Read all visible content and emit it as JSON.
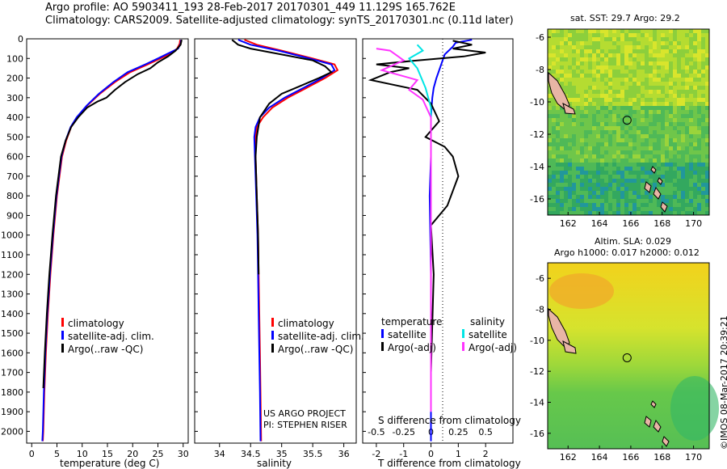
{
  "header": {
    "title_line1": "Argo profile: AO 5903411_193 28-Feb-2017 20170301_449 11.129S 165.762E",
    "title_line2": "Climatology: CARS2009. Satellite-adjusted climatology: synTS_20170301.nc (0.11d later)"
  },
  "colors": {
    "climatology": "#ff0000",
    "satellite": "#0000ff",
    "argo": "#000000",
    "sal_satellite": "#00e5e5",
    "sal_argo": "#ff33ff"
  },
  "chart_data": [
    {
      "type": "line",
      "id": "temperature",
      "xlabel": "temperature (deg C)",
      "xlim": [
        -1,
        31
      ],
      "ylim": [
        2060,
        0
      ],
      "xticks": [
        0,
        5,
        10,
        15,
        20,
        25,
        30
      ],
      "yticks": [
        0,
        100,
        200,
        300,
        400,
        500,
        600,
        700,
        800,
        900,
        1000,
        1100,
        1200,
        1300,
        1400,
        1500,
        1600,
        1700,
        1800,
        1900,
        2000
      ],
      "legend": [
        "climatology",
        "satellite-adj. clim.",
        "Argo(..raw -QC)"
      ],
      "series": [
        {
          "name": "climatology",
          "color": "#ff0000",
          "x": [
            29.4,
            29.3,
            28.8,
            27.5,
            25.5,
            23.0,
            19.5,
            16.5,
            13.5,
            11.0,
            9.0,
            7.8,
            6.8,
            6.0,
            5.0,
            4.3,
            3.7,
            3.2,
            2.8,
            2.5,
            2.3,
            2.2
          ],
          "y": [
            5,
            25,
            50,
            75,
            100,
            130,
            170,
            220,
            280,
            340,
            400,
            450,
            520,
            600,
            800,
            1000,
            1200,
            1400,
            1600,
            1800,
            2000,
            2050
          ]
        },
        {
          "name": "satellite-adj. clim.",
          "color": "#0000ff",
          "x": [
            29.6,
            29.5,
            29.0,
            27.0,
            25.0,
            22.5,
            19.0,
            16.2,
            13.3,
            10.9,
            8.9,
            7.7,
            6.7,
            5.9,
            4.9,
            4.2,
            3.6,
            3.1,
            2.7,
            2.4,
            2.2,
            2.1
          ],
          "y": [
            5,
            25,
            50,
            75,
            100,
            130,
            170,
            220,
            280,
            340,
            400,
            450,
            520,
            600,
            800,
            1000,
            1200,
            1400,
            1600,
            1800,
            2000,
            2050
          ]
        },
        {
          "name": "Argo(..raw -QC)",
          "color": "#000000",
          "x": [
            29.7,
            29.5,
            28.5,
            27.0,
            25.0,
            23.5,
            21.0,
            18.5,
            16.5,
            14.8,
            13.0,
            11.0,
            9.2,
            7.8,
            6.7,
            5.8,
            4.8,
            4.1,
            3.5,
            3.0,
            2.6,
            2.3
          ],
          "y": [
            5,
            30,
            60,
            90,
            120,
            150,
            180,
            220,
            260,
            300,
            320,
            350,
            400,
            450,
            520,
            600,
            800,
            1000,
            1200,
            1400,
            1600,
            1780
          ]
        }
      ]
    },
    {
      "type": "line",
      "id": "salinity",
      "xlabel": "salinity",
      "xlim": [
        33.6,
        36.2
      ],
      "ylim": [
        2060,
        0
      ],
      "xticks": [
        34,
        34.5,
        35,
        35.5,
        36
      ],
      "legend": [
        "climatology",
        "satellite-adj. clim.",
        "Argo(..raw -QC)"
      ],
      "credit_line1": "US ARGO PROJECT",
      "credit_line2": "PI: STEPHEN RISER",
      "series": [
        {
          "name": "climatology",
          "color": "#ff0000",
          "x": [
            34.4,
            34.6,
            35.0,
            35.5,
            35.85,
            35.9,
            35.7,
            35.4,
            35.1,
            34.85,
            34.7,
            34.6,
            34.58,
            34.58,
            34.6,
            34.62,
            34.63,
            34.64,
            34.65,
            34.66,
            34.67
          ],
          "y": [
            5,
            30,
            60,
            100,
            130,
            160,
            200,
            250,
            300,
            350,
            400,
            450,
            500,
            600,
            800,
            1000,
            1200,
            1400,
            1600,
            1800,
            2050
          ]
        },
        {
          "name": "satellite-adj. clim.",
          "color": "#0000ff",
          "x": [
            34.3,
            34.5,
            34.95,
            35.45,
            35.8,
            35.85,
            35.65,
            35.35,
            35.05,
            34.8,
            34.65,
            34.58,
            34.56,
            34.57,
            34.59,
            34.61,
            34.62,
            34.63,
            34.64,
            34.65,
            34.66
          ],
          "y": [
            5,
            30,
            60,
            100,
            130,
            160,
            200,
            250,
            300,
            350,
            400,
            450,
            500,
            600,
            800,
            1000,
            1200,
            1400,
            1600,
            1800,
            2050
          ]
        },
        {
          "name": "Argo(..raw -QC)",
          "color": "#000000",
          "x": [
            34.2,
            34.3,
            34.5,
            35.0,
            35.5,
            35.7,
            35.8,
            35.6,
            35.3,
            35.0,
            34.8,
            34.65,
            34.6,
            34.58,
            34.6,
            34.62,
            34.63
          ],
          "y": [
            5,
            30,
            50,
            80,
            110,
            140,
            170,
            200,
            240,
            280,
            330,
            400,
            500,
            600,
            800,
            1000,
            1200
          ]
        }
      ]
    },
    {
      "type": "line",
      "id": "difference",
      "xlabel": "T difference from climatology",
      "top_label": "S difference from climatology",
      "xlim": [
        -2.5,
        3
      ],
      "ylim": [
        2060,
        0
      ],
      "xticks": [
        -2,
        -1,
        0,
        1,
        2
      ],
      "s_ticks": [
        "-0.5",
        "-0.25",
        "0",
        "0.25",
        "0.5"
      ],
      "s_tick_positions": [
        -2,
        -1,
        0,
        1,
        2
      ],
      "legend_temperature": [
        "temperature",
        "satellite",
        "Argo(-adj)"
      ],
      "legend_salinity": [
        "salinity",
        "satellite",
        "Argo(-adj)"
      ],
      "series": [
        {
          "name": "satellite",
          "color": "#0000ff",
          "x": [
            1.5,
            0.9,
            0.8,
            0.5,
            0.4,
            0.3,
            0.2,
            0.1,
            0.05,
            0.0,
            0.0,
            -0.05,
            0.0,
            0.0,
            0.0
          ],
          "y": [
            5,
            20,
            40,
            80,
            120,
            160,
            200,
            250,
            300,
            400,
            600,
            800,
            1200,
            1600,
            2050
          ]
        },
        {
          "name": "Argo(-adj)",
          "color": "#000000",
          "x": [
            0.8,
            1.5,
            0.8,
            2.0,
            1.2,
            -0.5,
            -2.0,
            -0.8,
            -1.5,
            -2.2,
            -0.5,
            0.0,
            0.3,
            -0.2,
            0.5,
            0.8,
            1.0,
            0.6,
            0.0,
            0.1,
            0.0
          ],
          "y": [
            10,
            30,
            50,
            70,
            90,
            110,
            130,
            150,
            170,
            210,
            260,
            330,
            420,
            500,
            550,
            600,
            700,
            850,
            950,
            1200,
            1700
          ]
        },
        {
          "name": "salinity satellite",
          "color": "#00e5e5",
          "x": [
            -0.5,
            -0.3,
            -0.8,
            -0.5,
            -0.2,
            0.0,
            0.0,
            0.0,
            0.0,
            0.0
          ],
          "y": [
            30,
            60,
            100,
            150,
            250,
            350,
            500,
            700,
            1000,
            1900
          ]
        },
        {
          "name": "salinity Argo(-adj)",
          "color": "#ff33ff",
          "x": [
            -2.0,
            -1.5,
            -1.2,
            -1.0,
            -1.8,
            -0.5,
            -0.8,
            -0.3,
            0.0,
            0.0
          ],
          "y": [
            50,
            60,
            90,
            110,
            160,
            210,
            260,
            310,
            400,
            1900
          ]
        }
      ]
    },
    {
      "type": "heatmap",
      "id": "sst_map",
      "title": "sat. SST: 29.7 Argo: 29.2",
      "xlim": [
        160.7,
        171.0
      ],
      "ylim": [
        -17.0,
        -5.5
      ],
      "xticks": [
        162,
        164,
        166,
        168,
        170
      ],
      "yticks": [
        -6,
        -8,
        -10,
        -12,
        -14,
        -16
      ],
      "marker": [
        165.762,
        -11.129
      ]
    },
    {
      "type": "heatmap",
      "id": "sla_map",
      "title_line1": "Altim. SLA: 0.029",
      "title_line2": "Argo h1000: 0.017 h2000: 0.012",
      "xlim": [
        160.7,
        171.0
      ],
      "ylim": [
        -17.0,
        -5.0
      ],
      "xticks": [
        162,
        164,
        166,
        168,
        170
      ],
      "yticks": [
        -6,
        -8,
        -10,
        -12,
        -14,
        -16
      ],
      "marker": [
        165.762,
        -11.129
      ]
    }
  ],
  "footer": {
    "stamp": "©IMOS 08-Mar-2017 20:39:21"
  }
}
